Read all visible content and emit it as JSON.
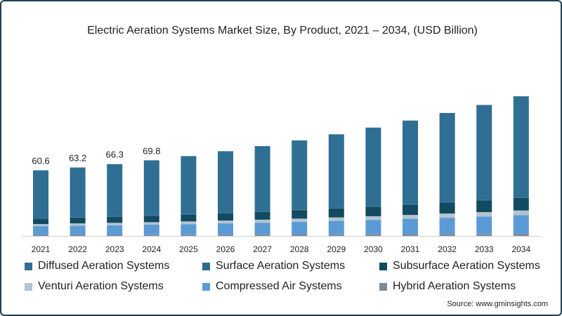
{
  "chart_data": {
    "type": "bar",
    "stacked": true,
    "title": "Electric Aeration Systems Market Size, By Product, 2021 – 2034, (USD Billion)",
    "xlabel": "",
    "ylabel": "",
    "ylim": [
      0,
      175
    ],
    "categories": [
      "2021",
      "2022",
      "2023",
      "2024",
      "2025",
      "2026",
      "2027",
      "2028",
      "2029",
      "2030",
      "2031",
      "2032",
      "2033",
      "2034"
    ],
    "totals_labels": [
      "60.6",
      "63.2",
      "66.3",
      "69.8",
      null,
      null,
      null,
      null,
      null,
      null,
      null,
      null,
      null,
      null
    ],
    "series": [
      {
        "name": "Hybrid Aeration Systems",
        "color": "#7f8a96",
        "values": [
          1.0,
          1.0,
          1.0,
          1.1,
          1.1,
          1.2,
          1.2,
          1.3,
          1.4,
          1.5,
          1.6,
          1.7,
          1.8,
          1.9
        ]
      },
      {
        "name": "Compressed Air Systems",
        "color": "#5b9bd5",
        "values": [
          8.0,
          8.5,
          8.9,
          9.3,
          9.8,
          10.4,
          11.0,
          11.7,
          12.5,
          13.3,
          14.2,
          15.1,
          16.1,
          17.2
        ]
      },
      {
        "name": "Venturi Aeration Systems",
        "color": "#b3c3cf",
        "values": [
          2.0,
          2.1,
          2.2,
          2.3,
          2.5,
          2.6,
          2.8,
          3.0,
          3.2,
          3.4,
          3.6,
          3.9,
          4.1,
          4.4
        ]
      },
      {
        "name": "Subsurface Aeration Systems",
        "color": "#124b61",
        "values": [
          5.0,
          5.3,
          5.6,
          6.0,
          6.3,
          6.7,
          7.2,
          7.7,
          8.2,
          8.8,
          9.4,
          10.1,
          10.8,
          11.6
        ]
      },
      {
        "name": "Surface Aeration Systems",
        "color": "#2a6c8e",
        "values": [
          0.5,
          0.5,
          0.5,
          0.5,
          0.5,
          0.5,
          0.5,
          0.5,
          0.5,
          0.5,
          0.5,
          0.5,
          0.5,
          0.5
        ]
      },
      {
        "name": "Diffused Aeration Systems",
        "color": "#2e6f93",
        "values": [
          44.1,
          45.8,
          48.1,
          50.6,
          53.5,
          56.8,
          60.2,
          64.0,
          68.0,
          72.5,
          77.2,
          82.2,
          87.6,
          93.3
        ]
      }
    ]
  },
  "legend": [
    {
      "label": "Diffused Aeration Systems",
      "color": "#2e6f93"
    },
    {
      "label": "Surface Aeration Systems",
      "color": "#2a6c8e"
    },
    {
      "label": "Subsurface Aeration Systems",
      "color": "#124b61"
    },
    {
      "label": "Venturi Aeration Systems",
      "color": "#b3c3cf"
    },
    {
      "label": "Compressed Air Systems",
      "color": "#5b9bd5"
    },
    {
      "label": "Hybrid Aeration Systems",
      "color": "#7f8a96"
    }
  ],
  "source": "Source: www.gminsights.com"
}
